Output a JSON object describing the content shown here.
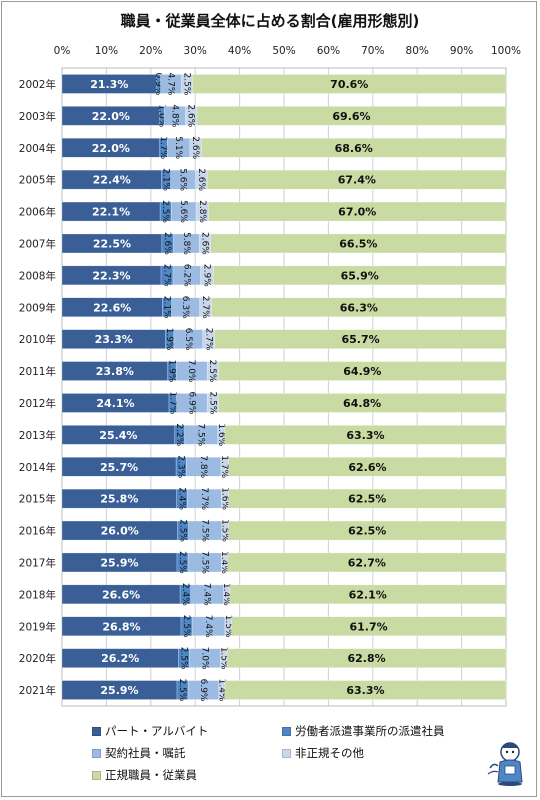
{
  "chart_data": {
    "type": "bar",
    "orientation": "horizontal-stacked-100",
    "title": "職員・従業員全体に占める割合(雇用形態別)",
    "categories": [
      "2002年",
      "2003年",
      "2004年",
      "2005年",
      "2006年",
      "2007年",
      "2008年",
      "2009年",
      "2010年",
      "2011年",
      "2012年",
      "2013年",
      "2014年",
      "2015年",
      "2016年",
      "2017年",
      "2018年",
      "2019年",
      "2020年",
      "2021年"
    ],
    "x_ticks": [
      "0%",
      "10%",
      "20%",
      "30%",
      "40%",
      "50%",
      "60%",
      "70%",
      "80%",
      "90%",
      "100%"
    ],
    "xlim": [
      0,
      100
    ],
    "grid": true,
    "legend_position": "bottom",
    "series": [
      {
        "name": "パート・アルバイト",
        "color": "#3a5f96",
        "label_color": "#ffffff",
        "values": [
          21.3,
          22.0,
          22.0,
          22.4,
          22.1,
          22.5,
          22.3,
          22.6,
          23.3,
          23.8,
          24.1,
          25.4,
          25.7,
          25.8,
          26.0,
          25.9,
          26.6,
          26.8,
          26.2,
          25.9
        ],
        "labels": [
          "21.3%",
          "22.0%",
          "22.0%",
          "22.4%",
          "22.1%",
          "22.5%",
          "22.3%",
          "22.6%",
          "23.3%",
          "23.8%",
          "24.1%",
          "25.4%",
          "25.7%",
          "25.8%",
          "26.0%",
          "25.9%",
          "26.6%",
          "26.8%",
          "26.2%",
          "25.9%"
        ]
      },
      {
        "name": "労働者派遣事業所の派遣社員",
        "color": "#4f86c6",
        "label_color": "#111111",
        "values": [
          0.9,
          1.0,
          1.7,
          2.1,
          2.5,
          2.6,
          2.7,
          2.1,
          1.9,
          1.9,
          1.7,
          2.2,
          2.3,
          2.4,
          2.5,
          2.5,
          2.4,
          2.5,
          2.5,
          2.5
        ],
        "labels": [
          "0.9%",
          "1.0%",
          "1.7%",
          "2.1%",
          "2.5%",
          "2.6%",
          "2.7%",
          "2.1%",
          "1.9%",
          "1.9%",
          "1.7%",
          "2.2%",
          "2.3%",
          "2.4%",
          "2.5%",
          "2.5%",
          "2.4%",
          "2.5%",
          "2.5%",
          "2.5%"
        ]
      },
      {
        "name": "契約社員・嘱託",
        "color": "#9bbbe2",
        "label_color": "#111111",
        "values": [
          4.7,
          4.8,
          5.1,
          5.6,
          5.6,
          5.8,
          6.2,
          6.3,
          6.5,
          7.0,
          6.9,
          7.5,
          7.8,
          7.7,
          7.5,
          7.5,
          7.4,
          7.4,
          7.0,
          6.9
        ],
        "labels": [
          "4.7%",
          "4.8%",
          "5.1%",
          "5.6%",
          "5.6%",
          "5.8%",
          "6.2%",
          "6.3%",
          "6.5%",
          "7.0%",
          "6.9%",
          "7.5%",
          "7.8%",
          "7.7%",
          "7.5%",
          "7.5%",
          "7.4%",
          "7.4%",
          "7.0%",
          "6.9%"
        ]
      },
      {
        "name": "非正規その他",
        "color": "#c8d7ea",
        "label_color": "#111111",
        "values": [
          2.5,
          2.6,
          2.6,
          2.6,
          2.8,
          2.6,
          2.9,
          2.7,
          2.7,
          2.5,
          2.5,
          1.6,
          1.7,
          1.6,
          1.5,
          1.4,
          1.4,
          1.5,
          1.5,
          1.4
        ],
        "labels": [
          "2.5%",
          "2.6%",
          "2.6%",
          "2.6%",
          "2.8%",
          "2.6%",
          "2.9%",
          "2.7%",
          "2.7%",
          "2.5%",
          "2.5%",
          "1.6%",
          "1.7%",
          "1.6%",
          "1.5%",
          "1.4%",
          "1.4%",
          "1.5%",
          "1.5%",
          "1.4%"
        ]
      },
      {
        "name": "正規職員・従業員",
        "color": "#c9dba2",
        "label_color": "#111111",
        "values": [
          70.6,
          69.6,
          68.6,
          67.4,
          67.0,
          66.5,
          65.9,
          66.3,
          65.7,
          64.9,
          64.8,
          63.3,
          62.6,
          62.5,
          62.5,
          62.7,
          62.1,
          61.7,
          62.8,
          63.3
        ],
        "labels": [
          "70.6%",
          "69.6%",
          "68.6%",
          "67.4%",
          "67.0%",
          "66.5%",
          "65.9%",
          "66.3%",
          "65.7%",
          "64.9%",
          "64.8%",
          "63.3%",
          "62.6%",
          "62.5%",
          "62.5%",
          "62.7%",
          "62.1%",
          "61.7%",
          "62.8%",
          "63.3%"
        ]
      }
    ]
  },
  "legend": {
    "items": [
      {
        "label": "パート・アルバイト",
        "color": "#3a5f96"
      },
      {
        "label": "労働者派遣事業所の派遣社員",
        "color": "#4f86c6"
      },
      {
        "label": "契約社員・嘱託",
        "color": "#9bbbe2"
      },
      {
        "label": "非正規その他",
        "color": "#c8d7ea"
      },
      {
        "label": "正規職員・従業員",
        "color": "#c9dba2"
      }
    ]
  },
  "mascot_icon": "cartoon-mascot-icon"
}
